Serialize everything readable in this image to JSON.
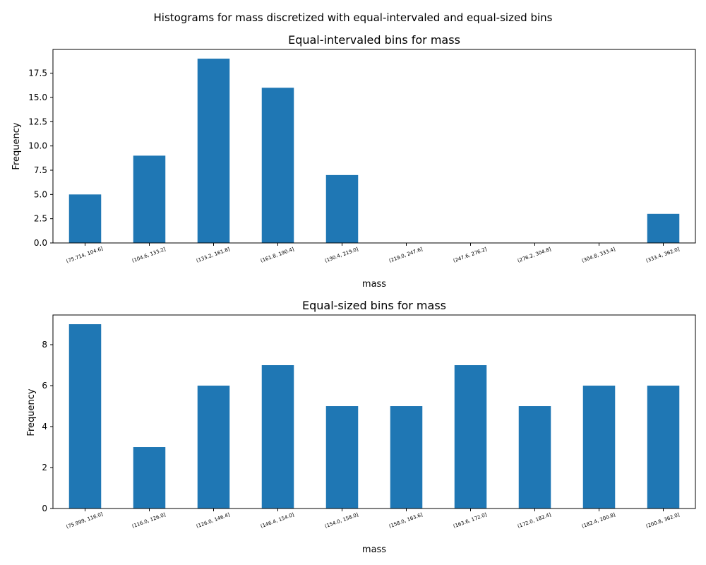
{
  "figure": {
    "suptitle": "Histograms for mass discretized with equal-intervaled and equal-sized bins"
  },
  "chart_data": [
    {
      "type": "bar",
      "title": "Equal-intervaled bins for mass",
      "xlabel": "mass",
      "ylabel": "Frequency",
      "categories": [
        "(75.714, 104.6]",
        "(104.6, 133.2]",
        "(133.2, 161.8]",
        "(161.8, 190.4]",
        "(190.4, 219.0]",
        "(219.0, 247.6]",
        "(247.6, 276.2]",
        "(276.2, 304.8]",
        "(304.8, 333.4]",
        "(333.4, 362.0]"
      ],
      "values": [
        5,
        9,
        19,
        16,
        7,
        0,
        0,
        0,
        0,
        3
      ],
      "ylim": [
        0,
        19.95
      ],
      "yticks": [
        "0.0",
        "2.5",
        "5.0",
        "7.5",
        "10.0",
        "12.5",
        "15.0",
        "17.5"
      ],
      "bar_color": "#1f77b4",
      "grid": false,
      "legend": "none"
    },
    {
      "type": "bar",
      "title": "Equal-sized bins for mass",
      "xlabel": "mass",
      "ylabel": "Frequency",
      "categories": [
        "(75.999, 116.0]",
        "(116.0, 126.0]",
        "(126.0, 146.4]",
        "(146.4, 154.0]",
        "(154.0, 158.0]",
        "(158.0, 163.6]",
        "(163.6, 172.0]",
        "(172.0, 182.4]",
        "(182.4, 200.8]",
        "(200.8, 362.0]"
      ],
      "values": [
        9,
        3,
        6,
        7,
        5,
        5,
        7,
        5,
        6,
        6
      ],
      "ylim": [
        0,
        9.45
      ],
      "yticks": [
        "0",
        "2",
        "4",
        "6",
        "8"
      ],
      "bar_color": "#1f77b4",
      "grid": false,
      "legend": "none"
    }
  ]
}
